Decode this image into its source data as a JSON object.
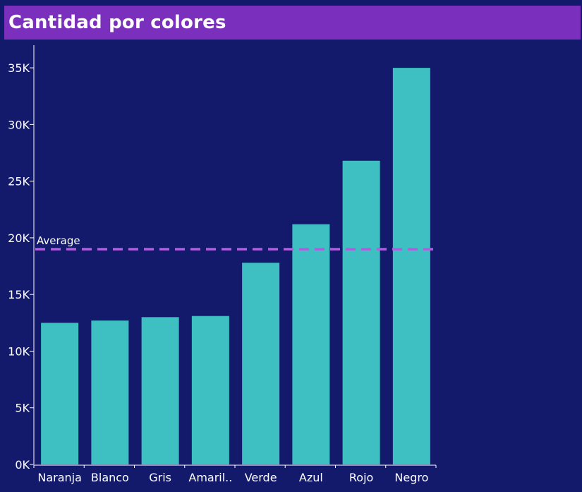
{
  "title": "Cantidad por colores",
  "colors": {
    "background": "#141a6b",
    "title_bar": "#7b2fbd",
    "bar": "#3ebfc2",
    "average_line": "#b45ce0",
    "text": "#ffffff"
  },
  "chart_data": {
    "type": "bar",
    "title": "Cantidad por colores",
    "xlabel": "",
    "ylabel": "",
    "categories": [
      "Naranja",
      "Blanco",
      "Gris",
      "Amaril..",
      "Verde",
      "Azul",
      "Rojo",
      "Negro"
    ],
    "values": [
      12500,
      12700,
      13000,
      13100,
      17800,
      21200,
      26800,
      35000
    ],
    "ylim": [
      0,
      37000
    ],
    "yticks": [
      0,
      5000,
      10000,
      15000,
      20000,
      25000,
      30000,
      35000
    ],
    "ytick_labels": [
      "0K",
      "5K",
      "10K",
      "15K",
      "20K",
      "25K",
      "30K",
      "35K"
    ],
    "reference_line": {
      "label": "Average",
      "value": 19000
    },
    "grid": false,
    "legend": "none"
  }
}
